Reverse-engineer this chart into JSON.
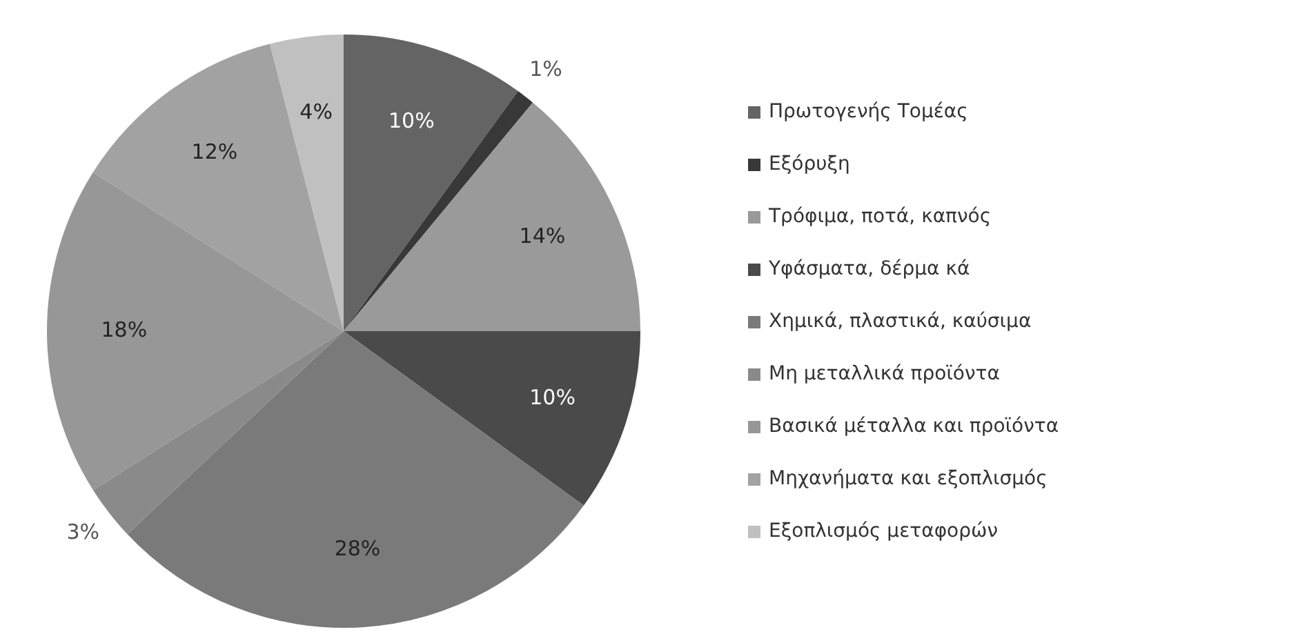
{
  "chart_data": {
    "type": "pie",
    "categories": [
      "Πρωτογενής Τομέας",
      "Εξόρυξη",
      "Τρόφιμα, ποτά, καπνός",
      "Υφάσματα, δέρμα κά",
      "Χημικά, πλαστικά, καύσιμα",
      "Μη μεταλλικά προϊόντα",
      "Βασικά μέταλλα και προϊόντα",
      "Μηχανήματα και εξοπλισμός",
      "Εξοπλισμός μεταφορών"
    ],
    "values": [
      10,
      1,
      14,
      10,
      28,
      3,
      18,
      12,
      4
    ],
    "value_labels": [
      "10%",
      "1%",
      "14%",
      "10%",
      "28%",
      "3%",
      "18%",
      "12%",
      "4%"
    ],
    "colors": [
      "#646464",
      "#383838",
      "#9a9a9a",
      "#4a4a4a",
      "#7a7a7a",
      "#8a8a8a",
      "#979797",
      "#a2a2a2",
      "#c0c0c0"
    ],
    "legend": "right"
  }
}
